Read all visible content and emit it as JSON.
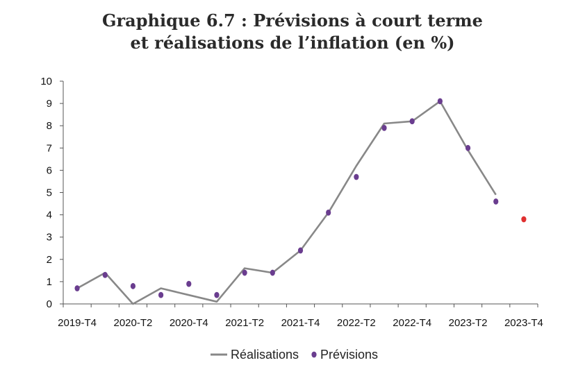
{
  "chart_data": {
    "type": "line",
    "title_line1": "Graphique 6.7 : Prévisions à court terme",
    "title_line2": "et réalisations de l’inflation (en %)",
    "xlabel": "",
    "ylabel": "",
    "ylim": [
      0,
      10
    ],
    "yticks": [
      "0",
      "1",
      "2",
      "3",
      "4",
      "5",
      "6",
      "7",
      "8",
      "9",
      "10"
    ],
    "xtick_labels": [
      "2019-T4",
      "2020-T2",
      "2020-T4",
      "2021-T2",
      "2021-T4",
      "2022-T2",
      "2022-T4",
      "2023-T2",
      "2023-T4"
    ],
    "x": [
      "2019-T4",
      "2020-T1",
      "2020-T2",
      "2020-T3",
      "2020-T4",
      "2021-T1",
      "2021-T2",
      "2021-T3",
      "2021-T4",
      "2022-T1",
      "2022-T2",
      "2022-T3",
      "2022-T4",
      "2023-T1",
      "2023-T2",
      "2023-T3",
      "2023-T4"
    ],
    "series": [
      {
        "name": "Réalisations",
        "kind": "line",
        "color": "#888888",
        "values": [
          0.7,
          1.4,
          0.0,
          0.7,
          0.4,
          0.1,
          1.6,
          1.4,
          2.4,
          4.1,
          6.2,
          8.1,
          8.2,
          9.1,
          6.9,
          4.9,
          null
        ]
      },
      {
        "name": "Prévisions",
        "kind": "dots",
        "color": "#6a3d8f",
        "last_point_color": "#e03030",
        "values": [
          0.7,
          1.3,
          0.8,
          0.4,
          0.9,
          0.4,
          1.4,
          1.4,
          2.4,
          4.1,
          5.7,
          7.9,
          8.2,
          9.1,
          7.0,
          4.6,
          3.8
        ]
      }
    ],
    "grid": false,
    "legend_position": "bottom-center"
  }
}
